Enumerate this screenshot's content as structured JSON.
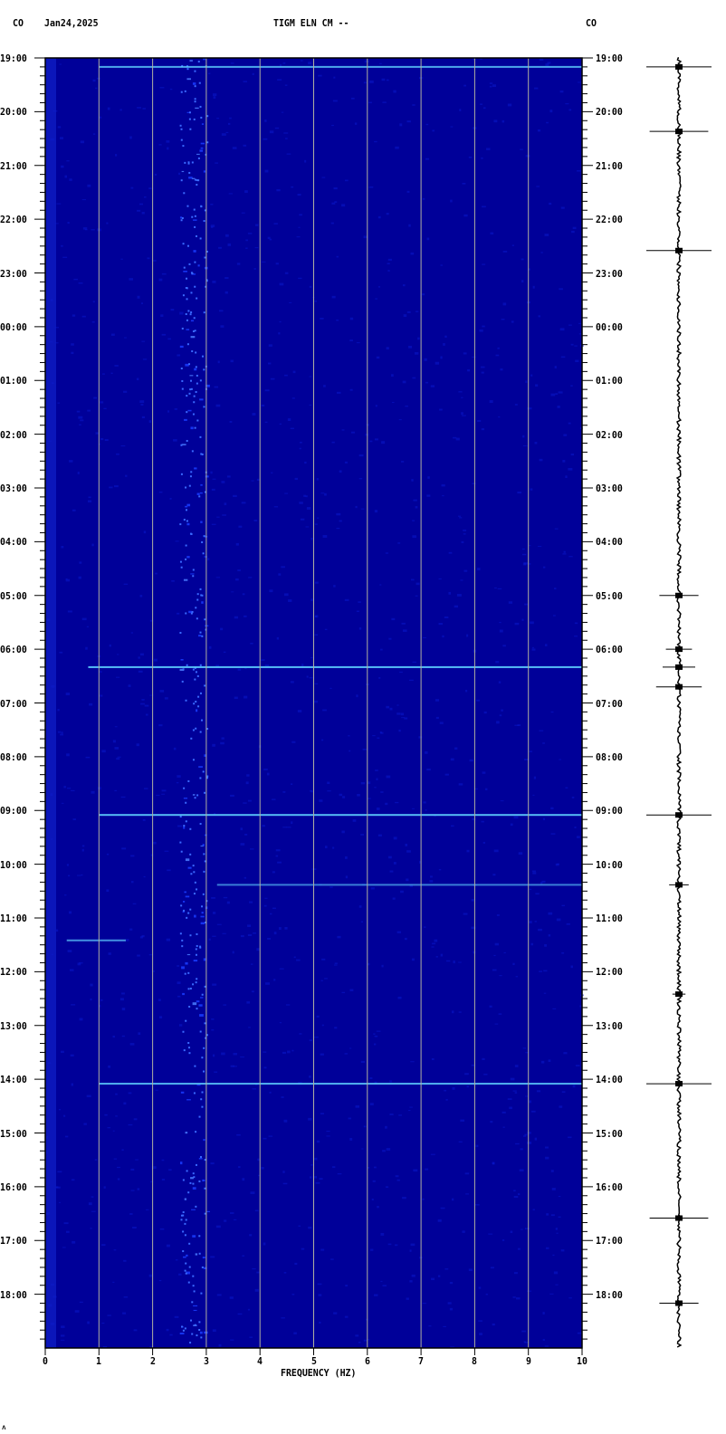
{
  "header": {
    "left_code": "CO",
    "date": "Jan24,2025",
    "station": "TIGM ELN CM --",
    "right_code": "CO"
  },
  "footer_mark": "ᴧ",
  "colors": {
    "background": "#000099",
    "band": "#1a3cff",
    "event": "#5fd0ff",
    "grid": "#b0b0a0",
    "trace": "#000000"
  },
  "chart_data": {
    "type": "heatmap",
    "title": "TIGM ELN CM --",
    "xlabel": "FREQUENCY (HZ)",
    "xlim": [
      0,
      10
    ],
    "x_ticks": [
      "0",
      "1",
      "2",
      "3",
      "4",
      "5",
      "6",
      "7",
      "8",
      "9",
      "10"
    ],
    "y_ticks": [
      "19:00",
      "20:00",
      "21:00",
      "22:00",
      "23:00",
      "00:00",
      "01:00",
      "02:00",
      "03:00",
      "04:00",
      "05:00",
      "06:00",
      "07:00",
      "08:00",
      "09:00",
      "10:00",
      "11:00",
      "12:00",
      "13:00",
      "14:00",
      "15:00",
      "16:00",
      "17:00",
      "18:00"
    ],
    "time_span_hours": 24,
    "minor_tick_minutes": 10,
    "grid": true,
    "dominant_band_hz": [
      2.5,
      3.0
    ],
    "events": [
      {
        "time": "19:10",
        "fmin": 1.0,
        "fmax": 10,
        "strength": 0.8
      },
      {
        "time": "06:20",
        "fmin": 0.8,
        "fmax": 10,
        "strength": 0.9
      },
      {
        "time": "09:05",
        "fmin": 1.0,
        "fmax": 10,
        "strength": 0.9
      },
      {
        "time": "10:23",
        "fmin": 3.2,
        "fmax": 10,
        "strength": 0.6
      },
      {
        "time": "11:25",
        "fmin": 0.4,
        "fmax": 1.5,
        "strength": 0.7
      },
      {
        "time": "14:05",
        "fmin": 1.0,
        "fmax": 10,
        "strength": 0.85
      }
    ],
    "trace_spikes": [
      {
        "time": "19:10",
        "amp": 1.0
      },
      {
        "time": "20:22",
        "amp": 0.9
      },
      {
        "time": "22:35",
        "amp": 1.0
      },
      {
        "time": "05:00",
        "amp": 0.6
      },
      {
        "time": "06:00",
        "amp": 0.4
      },
      {
        "time": "06:20",
        "amp": 0.5
      },
      {
        "time": "06:42",
        "amp": 0.7
      },
      {
        "time": "09:05",
        "amp": 1.0
      },
      {
        "time": "10:23",
        "amp": 0.3
      },
      {
        "time": "12:25",
        "amp": 0.2
      },
      {
        "time": "14:05",
        "amp": 1.0
      },
      {
        "time": "16:35",
        "amp": 0.9
      },
      {
        "time": "18:10",
        "amp": 0.6
      }
    ]
  }
}
